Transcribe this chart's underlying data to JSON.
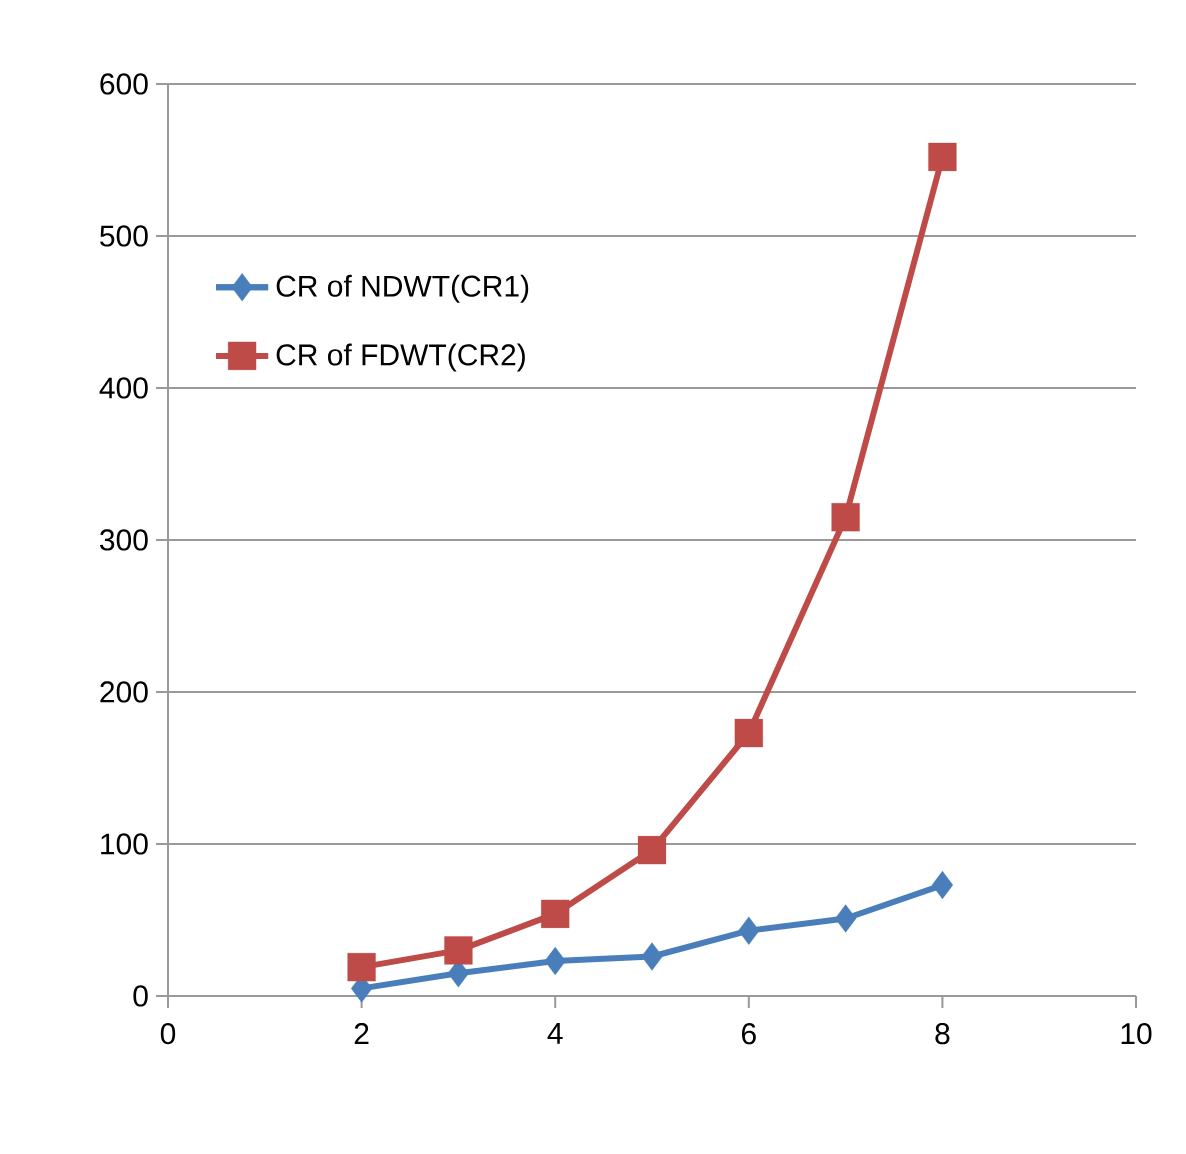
{
  "chart_data": {
    "type": "line",
    "x": [
      2,
      3,
      4,
      5,
      6,
      7,
      8
    ],
    "series": [
      {
        "name": "CR of NDWT(CR1)",
        "color": "#4a7ebb",
        "marker": "diamond",
        "values": [
          5,
          15,
          23,
          26,
          43,
          51,
          73
        ]
      },
      {
        "name": "CR of FDWT(CR2)",
        "color": "#be4b48",
        "marker": "square",
        "values": [
          19,
          30,
          54,
          96,
          173,
          315,
          552
        ]
      }
    ],
    "xlim": [
      0,
      10
    ],
    "xticks": [
      0,
      2,
      4,
      6,
      8,
      10
    ],
    "ylim": [
      0,
      600
    ],
    "yticks": [
      0,
      100,
      200,
      300,
      400,
      500,
      600
    ],
    "grid": "y",
    "legend": "top left",
    "line_style": "solid"
  }
}
